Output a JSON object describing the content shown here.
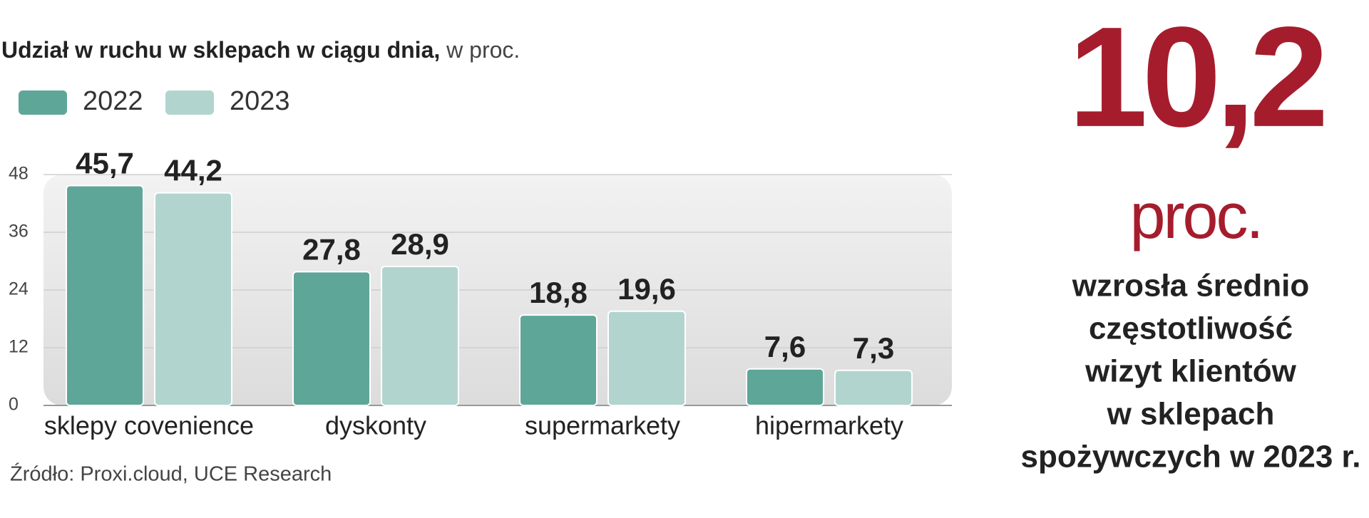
{
  "chart_data": {
    "type": "bar",
    "title": "Udział w ruchu w sklepach w ciągu dnia,",
    "subtitle": "w proc.",
    "categories": [
      "sklepy covenience",
      "dyskonty",
      "supermarkety",
      "hipermarkety"
    ],
    "series": [
      {
        "name": "2022",
        "color": "#5ea698",
        "values": [
          45.7,
          27.8,
          18.8,
          7.6
        ],
        "value_labels": [
          "45,7",
          "27,8",
          "18,8",
          "7,6"
        ]
      },
      {
        "name": "2023",
        "color": "#b2d4cf",
        "values": [
          44.2,
          28.9,
          19.6,
          7.3
        ],
        "value_labels": [
          "44,2",
          "28,9",
          "19,6",
          "7,3"
        ]
      }
    ],
    "ylim": [
      0,
      48
    ],
    "yticks": [
      0,
      12,
      24,
      36,
      48
    ],
    "grid": true,
    "source": "Źródło: Proxi.cloud, UCE Research"
  },
  "callout": {
    "value": "10,2",
    "unit": "proc.",
    "lines": [
      "wzrosła średnio",
      "częstotliwość",
      "wizyt klientów",
      "w sklepach",
      "spożywczych w 2023 r."
    ]
  }
}
